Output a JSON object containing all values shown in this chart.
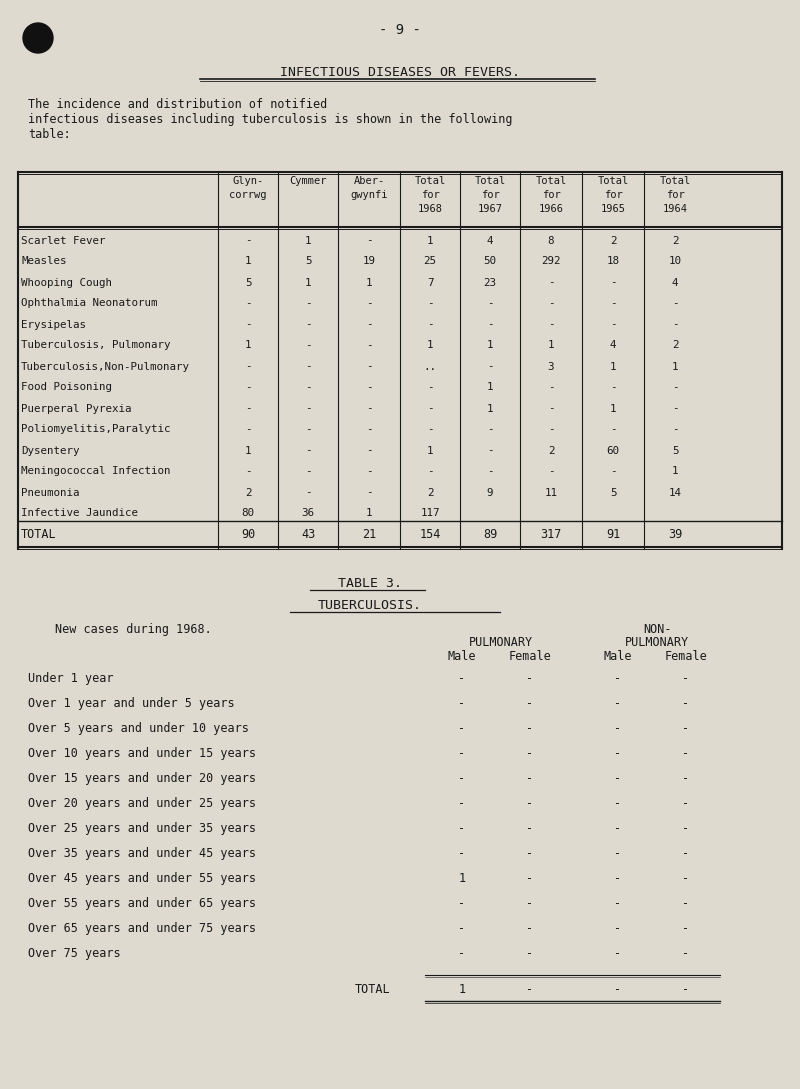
{
  "bg_color": "#dedad0",
  "text_color": "#1a1a1a",
  "page_number": "- 9 -",
  "title": "INFECTIOUS DISEASES OR FEVERS.",
  "subtitle_lines": [
    "The incidence and distribution of notified",
    "infectious diseases including tuberculosis is shown in the following",
    "table:"
  ],
  "table1_headers": [
    "Glyn-\ncorrwg",
    "Cymmer",
    "Aber-\ngwynfi",
    "Total\nfor\n1968",
    "Total\nfor\n1967",
    "Total\nfor\n1966",
    "Total\nfor\n1965",
    "Total\nfor\n1964"
  ],
  "table1_diseases": [
    "Scarlet Fever",
    "Measles",
    "Whooping Cough",
    "Ophthalmia Neonatorum",
    "Erysipelas",
    "Tuberculosis, Pulmonary",
    "Tuberculosis,Non-Pulmonary",
    "Food Poisoning",
    "Puerperal Pyrexia",
    "Poliomyelitis,Paralytic",
    "Dysentery",
    "Meningococcal Infection",
    "Pneumonia",
    "Infective Jaundice"
  ],
  "table1_data": [
    [
      "-",
      "1",
      "-",
      "1",
      "4",
      "8",
      "2",
      "2"
    ],
    [
      "1",
      "5",
      "19",
      "25",
      "50",
      "292",
      "18",
      "10"
    ],
    [
      "5",
      "1",
      "1",
      "7",
      "23",
      "-",
      "-",
      "4"
    ],
    [
      "-",
      "-",
      "-",
      "-",
      "-",
      "-",
      "-",
      "-"
    ],
    [
      "-",
      "-",
      "-",
      "-",
      "-",
      "-",
      "-",
      "-"
    ],
    [
      "1",
      "-",
      "-",
      "1",
      "1",
      "1",
      "4",
      "2"
    ],
    [
      "-",
      "-",
      "-",
      "..",
      "-",
      "3",
      "1",
      "1"
    ],
    [
      "-",
      "-",
      "-",
      "-",
      "1",
      "-",
      "-",
      "-"
    ],
    [
      "-",
      "-",
      "-",
      "-",
      "1",
      "-",
      "1",
      "-"
    ],
    [
      "-",
      "-",
      "-",
      "-",
      "-",
      "-",
      "-",
      "-"
    ],
    [
      "1",
      "-",
      "-",
      "1",
      "-",
      "2",
      "60",
      "5"
    ],
    [
      "-",
      "-",
      "-",
      "-",
      "-",
      "-",
      "-",
      "1"
    ],
    [
      "2",
      "-",
      "-",
      "2",
      "9",
      "11",
      "5",
      "14"
    ],
    [
      "80",
      "36",
      "1",
      "117",
      "",
      "",
      "",
      ""
    ]
  ],
  "table1_total": [
    "90",
    "43",
    "21",
    "154",
    "89",
    "317",
    "91",
    "39"
  ],
  "table2_title": "TABLE 3.",
  "table2_subtitle": "TUBERCULOSIS.",
  "table2_desc": "New cases during 1968.",
  "table2_age_groups": [
    "Under 1 year",
    "Over 1 year and under 5 years",
    "Over 5 years and under 10 years",
    "Over 10 years and under 15 years",
    "Over 15 years and under 20 years",
    "Over 20 years and under 25 years",
    "Over 25 years and under 35 years",
    "Over 35 years and under 45 years",
    "Over 45 years and under 55 years",
    "Over 55 years and under 65 years",
    "Over 65 years and under 75 years",
    "Over 75 years"
  ],
  "table2_data": [
    [
      "-",
      "-",
      "-",
      "-"
    ],
    [
      "-",
      "-",
      "-",
      "-"
    ],
    [
      "-",
      "-",
      "-",
      "-"
    ],
    [
      "-",
      "-",
      "-",
      "-"
    ],
    [
      "-",
      "-",
      "-",
      "-"
    ],
    [
      "-",
      "-",
      "-",
      "-"
    ],
    [
      "-",
      "-",
      "-",
      "-"
    ],
    [
      "-",
      "-",
      "-",
      "-"
    ],
    [
      "1",
      "-",
      "-",
      "-"
    ],
    [
      "-",
      "-",
      "-",
      "-"
    ],
    [
      "-",
      "-",
      "-",
      "-"
    ],
    [
      "-",
      "-",
      "-",
      "-"
    ]
  ],
  "table2_total": [
    "1",
    "-",
    "-",
    "-"
  ]
}
